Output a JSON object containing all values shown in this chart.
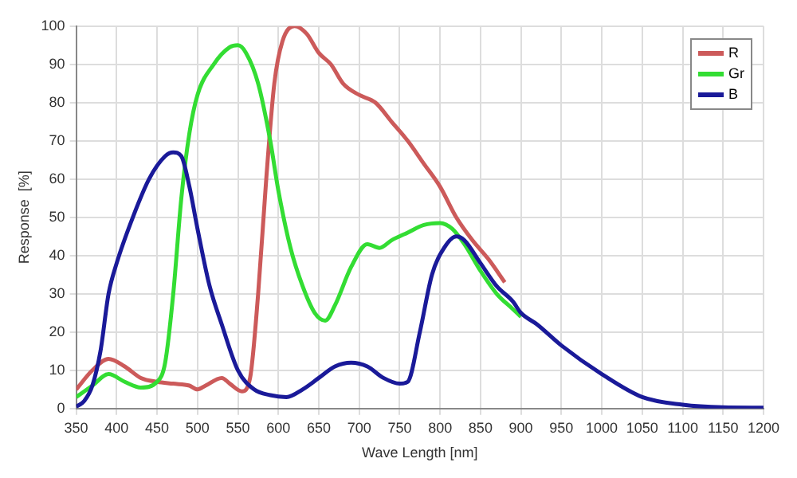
{
  "chart_data": {
    "type": "line",
    "xlabel": "Wave Length [nm]",
    "ylabel": "Response  [%]",
    "xlim": [
      350,
      1200
    ],
    "xticks": [
      350,
      400,
      450,
      500,
      550,
      600,
      650,
      700,
      750,
      800,
      850,
      900,
      950,
      1000,
      1050,
      1100,
      1150,
      1200
    ],
    "ylim": [
      0,
      100
    ],
    "yticks": [
      0,
      10,
      20,
      30,
      40,
      50,
      60,
      70,
      80,
      90,
      100
    ],
    "grid": true,
    "legend": "top right",
    "marker": "none",
    "line_style": "solid",
    "series": [
      {
        "name": "R",
        "color": "#cc5a5a",
        "x": [
          350,
          370,
          390,
          410,
          430,
          450,
          470,
          490,
          500,
          510,
          530,
          540,
          555,
          565,
          575,
          585,
          595,
          605,
          620,
          635,
          650,
          665,
          680,
          700,
          720,
          740,
          760,
          780,
          800,
          820,
          840,
          860,
          880
        ],
        "values": [
          5,
          10,
          13,
          11,
          8,
          7,
          6.5,
          6,
          5,
          6,
          8,
          6.5,
          4.5,
          8,
          30,
          60,
          85,
          96,
          100,
          98,
          93,
          90,
          85,
          82,
          80,
          75,
          70,
          64,
          58,
          50,
          44,
          39,
          33
        ]
      },
      {
        "name": "Gr",
        "color": "#33dd33",
        "x": [
          350,
          370,
          390,
          410,
          430,
          450,
          460,
          470,
          480,
          490,
          500,
          520,
          540,
          550,
          560,
          575,
          590,
          600,
          615,
          630,
          645,
          658,
          670,
          690,
          710,
          725,
          740,
          760,
          780,
          800,
          815,
          830,
          850,
          870,
          890,
          900
        ],
        "values": [
          3,
          6,
          9,
          7,
          5.5,
          7,
          12,
          30,
          55,
          72,
          82,
          90,
          94.5,
          95,
          93,
          85,
          70,
          57,
          42,
          32,
          25,
          23,
          27,
          37,
          43,
          42,
          44,
          46,
          48,
          48.5,
          47,
          43,
          36,
          30,
          26,
          24
        ]
      },
      {
        "name": "B",
        "color": "#1a1a99",
        "x": [
          350,
          360,
          370,
          380,
          390,
          400,
          420,
          440,
          460,
          470,
          480,
          490,
          500,
          515,
          530,
          550,
          570,
          590,
          610,
          630,
          650,
          670,
          690,
          710,
          730,
          750,
          760,
          775,
          790,
          805,
          820,
          830,
          850,
          870,
          890,
          900,
          920,
          950,
          1000,
          1050,
          1100,
          1150,
          1200
        ],
        "values": [
          0.5,
          2,
          6,
          15,
          30,
          38,
          50,
          60,
          66,
          67,
          66,
          58,
          47,
          32,
          22,
          10,
          5,
          3.5,
          3,
          5,
          8,
          11,
          12,
          11,
          8,
          6.5,
          7,
          20,
          35,
          42,
          45,
          44,
          38,
          32,
          28,
          25,
          22,
          16.5,
          9,
          3,
          1,
          0.3,
          0.2
        ]
      }
    ]
  }
}
